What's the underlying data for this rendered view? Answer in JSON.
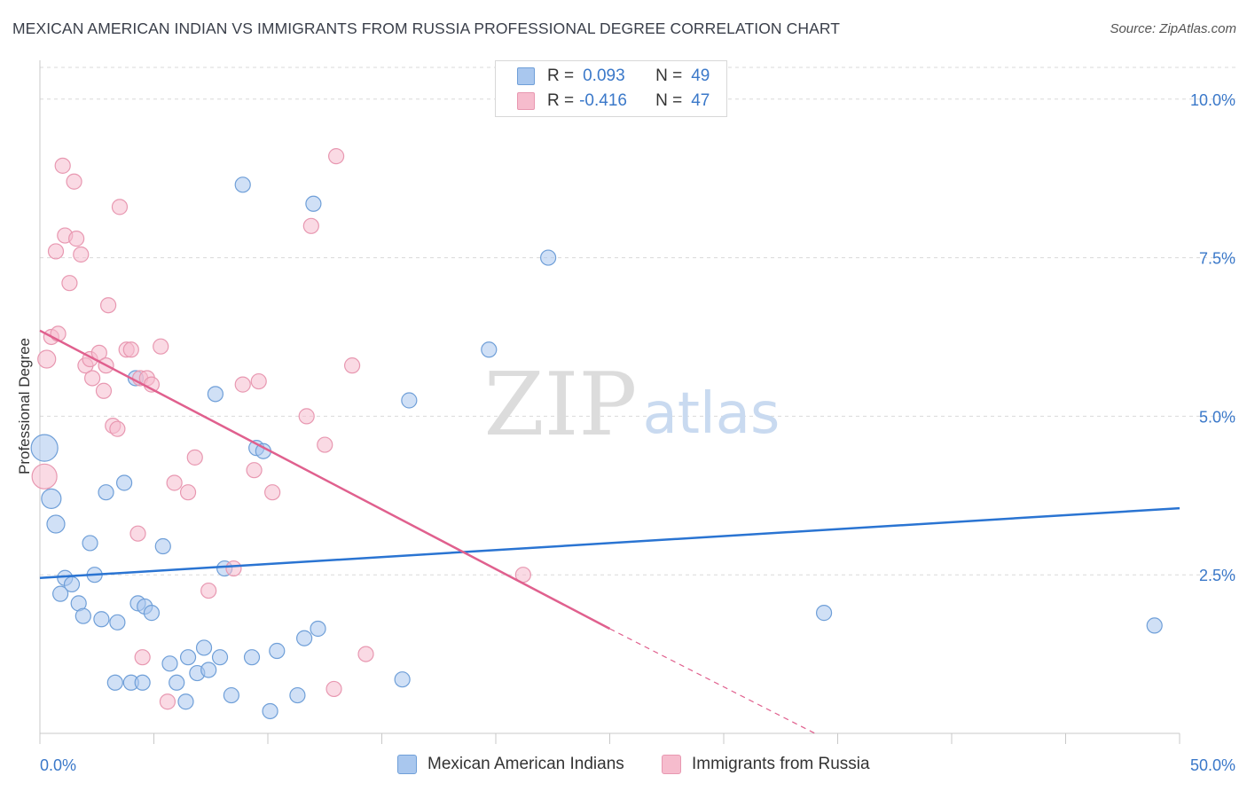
{
  "header": {
    "title": "MEXICAN AMERICAN INDIAN VS IMMIGRANTS FROM RUSSIA PROFESSIONAL DEGREE CORRELATION CHART",
    "source": "Source: ZipAtlas.com"
  },
  "watermark": {
    "zip": "ZIP",
    "atlas": "atlas"
  },
  "legend": {
    "rows": [
      {
        "r_label": "R =",
        "r_value": "0.093",
        "n_label": "N =",
        "n_value": "49"
      },
      {
        "r_label": "R =",
        "r_value": "-0.416",
        "n_label": "N =",
        "n_value": "47"
      }
    ]
  },
  "colors": {
    "blue_fill": "#a9c7ee",
    "blue_stroke": "#6f9fd8",
    "blue_line": "#2a74d2",
    "pink_fill": "#f6bccd",
    "pink_stroke": "#e898b1",
    "pink_line": "#e0608e",
    "tick_color": "#3a78c9",
    "grid": "#d9d9d9"
  },
  "chart_data": {
    "type": "scatter",
    "ylabel": "Professional Degree",
    "xlim": [
      0,
      50
    ],
    "ylim": [
      0,
      10.5
    ],
    "x_tick_labels": [
      "0.0%",
      "50.0%"
    ],
    "y_ticks": [
      {
        "value": 2.5,
        "label": "2.5%"
      },
      {
        "value": 5.0,
        "label": "5.0%"
      },
      {
        "value": 7.5,
        "label": "7.5%"
      },
      {
        "value": 10.0,
        "label": "10.0%"
      }
    ],
    "grid": true,
    "legend_position": "top-center",
    "series": [
      {
        "name": "Mexican American Indians",
        "color": "#a9c7ee",
        "trend": {
          "x": [
            0,
            50
          ],
          "y": [
            2.45,
            3.55
          ]
        },
        "points": [
          {
            "x": 0.2,
            "y": 4.5,
            "s": 30
          },
          {
            "x": 0.5,
            "y": 3.7,
            "s": 22
          },
          {
            "x": 0.7,
            "y": 3.3,
            "s": 20
          },
          {
            "x": 0.9,
            "y": 2.2
          },
          {
            "x": 1.1,
            "y": 2.45
          },
          {
            "x": 1.4,
            "y": 2.35
          },
          {
            "x": 1.7,
            "y": 2.05
          },
          {
            "x": 1.9,
            "y": 1.85
          },
          {
            "x": 2.2,
            "y": 3.0
          },
          {
            "x": 2.4,
            "y": 2.5
          },
          {
            "x": 2.7,
            "y": 1.8
          },
          {
            "x": 2.9,
            "y": 3.8
          },
          {
            "x": 3.3,
            "y": 0.8
          },
          {
            "x": 3.4,
            "y": 1.75
          },
          {
            "x": 3.7,
            "y": 3.95
          },
          {
            "x": 4.0,
            "y": 0.8
          },
          {
            "x": 4.3,
            "y": 2.05
          },
          {
            "x": 4.5,
            "y": 0.8
          },
          {
            "x": 4.2,
            "y": 5.6
          },
          {
            "x": 4.6,
            "y": 2.0
          },
          {
            "x": 4.9,
            "y": 1.9
          },
          {
            "x": 5.4,
            "y": 2.95
          },
          {
            "x": 5.7,
            "y": 1.1
          },
          {
            "x": 6.0,
            "y": 0.8
          },
          {
            "x": 6.4,
            "y": 0.5
          },
          {
            "x": 6.5,
            "y": 1.2
          },
          {
            "x": 6.9,
            "y": 0.95
          },
          {
            "x": 7.2,
            "y": 1.35
          },
          {
            "x": 7.4,
            "y": 1.0
          },
          {
            "x": 7.7,
            "y": 5.35
          },
          {
            "x": 7.9,
            "y": 1.2
          },
          {
            "x": 8.1,
            "y": 2.6
          },
          {
            "x": 8.4,
            "y": 0.6
          },
          {
            "x": 8.9,
            "y": 8.65
          },
          {
            "x": 9.3,
            "y": 1.2
          },
          {
            "x": 9.5,
            "y": 4.5
          },
          {
            "x": 9.8,
            "y": 4.45
          },
          {
            "x": 10.1,
            "y": 0.35
          },
          {
            "x": 10.4,
            "y": 1.3
          },
          {
            "x": 11.3,
            "y": 0.6
          },
          {
            "x": 11.6,
            "y": 1.5
          },
          {
            "x": 12.0,
            "y": 8.35
          },
          {
            "x": 12.2,
            "y": 1.65
          },
          {
            "x": 15.9,
            "y": 0.85
          },
          {
            "x": 16.2,
            "y": 5.25
          },
          {
            "x": 19.7,
            "y": 6.05
          },
          {
            "x": 22.3,
            "y": 7.5
          },
          {
            "x": 34.4,
            "y": 1.9
          },
          {
            "x": 48.9,
            "y": 1.7
          }
        ]
      },
      {
        "name": "Immigrants from Russia",
        "color": "#f6bccd",
        "trend": {
          "x": [
            0,
            25
          ],
          "y": [
            6.35,
            1.65
          ]
        },
        "trend_dashed": {
          "x": [
            25,
            34
          ],
          "y": [
            1.65,
            0.0
          ]
        },
        "points": [
          {
            "x": 0.2,
            "y": 4.05,
            "s": 28
          },
          {
            "x": 0.3,
            "y": 5.9,
            "s": 20
          },
          {
            "x": 0.5,
            "y": 6.25
          },
          {
            "x": 0.7,
            "y": 7.6
          },
          {
            "x": 0.8,
            "y": 6.3
          },
          {
            "x": 1.0,
            "y": 8.95
          },
          {
            "x": 1.1,
            "y": 7.85
          },
          {
            "x": 1.3,
            "y": 7.1
          },
          {
            "x": 1.5,
            "y": 8.7
          },
          {
            "x": 1.6,
            "y": 7.8
          },
          {
            "x": 1.8,
            "y": 7.55
          },
          {
            "x": 2.0,
            "y": 5.8
          },
          {
            "x": 2.2,
            "y": 5.9
          },
          {
            "x": 2.3,
            "y": 5.6
          },
          {
            "x": 2.6,
            "y": 6.0
          },
          {
            "x": 2.8,
            "y": 5.4
          },
          {
            "x": 2.9,
            "y": 5.8
          },
          {
            "x": 3.0,
            "y": 6.75
          },
          {
            "x": 3.2,
            "y": 4.85
          },
          {
            "x": 3.4,
            "y": 4.8
          },
          {
            "x": 3.5,
            "y": 8.3
          },
          {
            "x": 3.8,
            "y": 6.05
          },
          {
            "x": 4.0,
            "y": 6.05
          },
          {
            "x": 4.3,
            "y": 3.15
          },
          {
            "x": 4.4,
            "y": 5.6
          },
          {
            "x": 4.5,
            "y": 1.2
          },
          {
            "x": 4.7,
            "y": 5.6
          },
          {
            "x": 4.9,
            "y": 5.5
          },
          {
            "x": 5.3,
            "y": 6.1
          },
          {
            "x": 5.6,
            "y": 0.5
          },
          {
            "x": 5.9,
            "y": 3.95
          },
          {
            "x": 6.5,
            "y": 3.8
          },
          {
            "x": 6.8,
            "y": 4.35
          },
          {
            "x": 7.4,
            "y": 2.25
          },
          {
            "x": 8.5,
            "y": 2.6
          },
          {
            "x": 8.9,
            "y": 5.5
          },
          {
            "x": 9.4,
            "y": 4.15
          },
          {
            "x": 9.6,
            "y": 5.55
          },
          {
            "x": 10.2,
            "y": 3.8
          },
          {
            "x": 11.7,
            "y": 5.0
          },
          {
            "x": 11.9,
            "y": 8.0
          },
          {
            "x": 12.5,
            "y": 4.55
          },
          {
            "x": 12.9,
            "y": 0.7
          },
          {
            "x": 13.0,
            "y": 9.1
          },
          {
            "x": 13.7,
            "y": 5.8
          },
          {
            "x": 14.3,
            "y": 1.25
          },
          {
            "x": 21.2,
            "y": 2.5
          }
        ]
      }
    ]
  }
}
